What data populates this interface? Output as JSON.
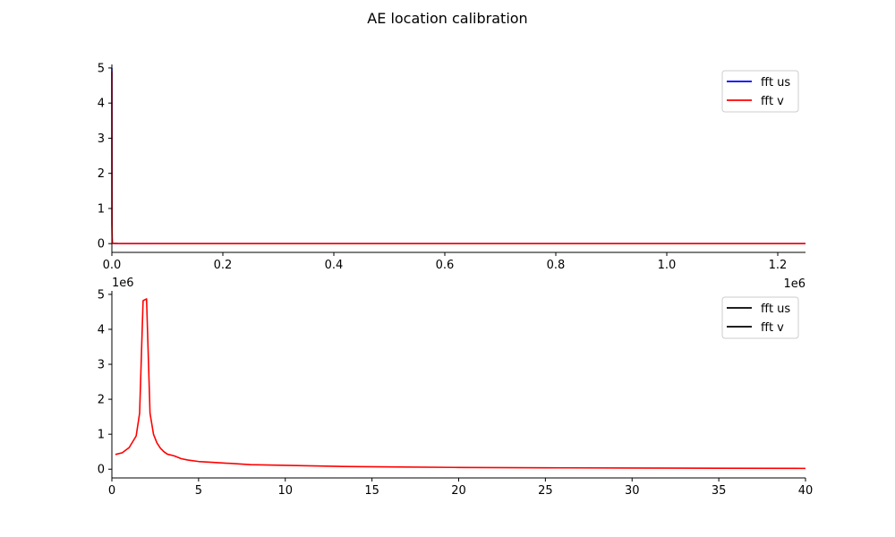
{
  "figure": {
    "title": "AE location calibration"
  },
  "chart_data": [
    {
      "type": "line",
      "title": "",
      "xlabel": "",
      "ylabel": "",
      "x_offset_label": "1e6",
      "y_offset_label": "",
      "xlim": [
        0,
        1250000
      ],
      "ylim": [
        -0.25,
        5.1
      ],
      "x_ticks": [
        0,
        200000,
        400000,
        600000,
        800000,
        1000000,
        1200000
      ],
      "x_tick_labels": [
        "0.0",
        "0.2",
        "0.4",
        "0.6",
        "0.8",
        "1.0",
        "1.2"
      ],
      "y_ticks": [
        0,
        1,
        2,
        3,
        4,
        5
      ],
      "y_tick_labels": [
        "0",
        "1",
        "2",
        "3",
        "4",
        "5"
      ],
      "grid": false,
      "legend_position": "top-right",
      "legend": [
        {
          "label": "fft us",
          "color": "#0000ff"
        },
        {
          "label": "fft v",
          "color": "#ff0000"
        }
      ],
      "series": [
        {
          "name": "fft us",
          "color": "#0000ff",
          "x": [
            0,
            250,
            500,
            750,
            1000,
            1500,
            3000,
            10000,
            100000,
            300000,
            600000,
            900000,
            1250000
          ],
          "y": [
            5.0,
            0.6,
            0.15,
            0.05,
            0.02,
            0.01,
            0.005,
            0.002,
            0.001,
            0.001,
            0.001,
            0.001,
            0.001
          ]
        },
        {
          "name": "fft v",
          "color": "#ff0000",
          "x": [
            0,
            250,
            500,
            750,
            1000,
            1500,
            3000,
            10000,
            100000,
            300000,
            600000,
            900000,
            1250000
          ],
          "y": [
            4.9,
            0.55,
            0.14,
            0.05,
            0.02,
            0.01,
            0.005,
            0.002,
            0.001,
            0.001,
            0.001,
            0.001,
            0.001
          ]
        }
      ]
    },
    {
      "type": "line",
      "title": "",
      "xlabel": "",
      "ylabel": "",
      "x_offset_label": "",
      "y_offset_label": "1e6",
      "xlim": [
        0,
        40
      ],
      "ylim": [
        -0.25,
        5.1
      ],
      "x_ticks": [
        0,
        5,
        10,
        15,
        20,
        25,
        30,
        35,
        40
      ],
      "x_tick_labels": [
        "0",
        "5",
        "10",
        "15",
        "20",
        "25",
        "30",
        "35",
        "40"
      ],
      "y_ticks": [
        0,
        1,
        2,
        3,
        4,
        5
      ],
      "y_tick_labels": [
        "0",
        "1",
        "2",
        "3",
        "4",
        "5"
      ],
      "grid": false,
      "legend_position": "top-right",
      "legend": [
        {
          "label": "fft us",
          "color": "#000000"
        },
        {
          "label": "fft v",
          "color": "#000000"
        }
      ],
      "series": [
        {
          "name": "fft v",
          "color": "#ff0000",
          "x": [
            0.2,
            0.6,
            1.0,
            1.4,
            1.6,
            1.8,
            2.0,
            2.2,
            2.4,
            2.6,
            2.8,
            3.0,
            3.2,
            3.6,
            4.0,
            4.4,
            5.0,
            6.0,
            7.0,
            8.0,
            10.0,
            13.0,
            16.0,
            20.0,
            25.0,
            30.0,
            35.0,
            40.0
          ],
          "y": [
            0.42,
            0.47,
            0.62,
            0.95,
            1.6,
            4.82,
            4.87,
            1.6,
            1.0,
            0.75,
            0.6,
            0.5,
            0.43,
            0.38,
            0.3,
            0.26,
            0.22,
            0.19,
            0.16,
            0.13,
            0.11,
            0.08,
            0.065,
            0.05,
            0.04,
            0.033,
            0.028,
            0.022
          ]
        }
      ]
    }
  ]
}
